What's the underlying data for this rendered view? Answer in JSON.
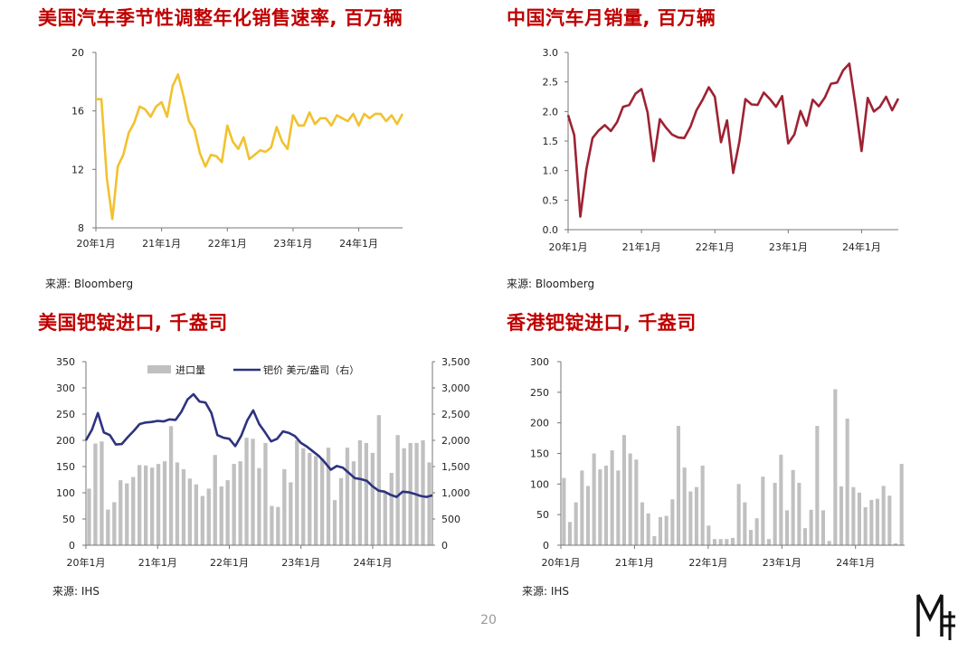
{
  "panels": {
    "us_auto": {
      "title": "美国汽车季节性调整年化销售速率, 百万辆",
      "source": "来源: Bloomberg"
    },
    "cn_auto": {
      "title": "中国汽车月销量, 百万辆",
      "source": "来源: Bloomberg"
    },
    "us_pd": {
      "title": "美国钯锭进口, 千盎司",
      "source": "来源: IHS"
    },
    "hk_pd": {
      "title": "香港钯锭进口, 千盎司",
      "source": "来源: IHS"
    }
  },
  "page_number": "20",
  "colors": {
    "title": "#c00000",
    "us_auto_line": "#f2c12e",
    "cn_auto_line": "#9e2233",
    "bar": "#c0c0c0",
    "price_line": "#2e3280"
  },
  "chart_data": [
    {
      "id": "us_auto",
      "type": "line",
      "x_ticks": [
        "20年1月",
        "21年1月",
        "22年1月",
        "23年1月",
        "24年1月"
      ],
      "ylim": [
        8,
        20
      ],
      "yticks": [
        8,
        12,
        16,
        20
      ],
      "grid": false,
      "series": [
        {
          "values": [
            16.8,
            16.8,
            11.4,
            8.6,
            12.2,
            13.0,
            14.5,
            15.2,
            16.3,
            16.1,
            15.6,
            16.3,
            16.6,
            15.6,
            17.7,
            18.5,
            17.0,
            15.3,
            14.7,
            13.1,
            12.2,
            13.0,
            12.9,
            12.5,
            15.0,
            13.9,
            13.4,
            14.2,
            12.7,
            13.0,
            13.3,
            13.2,
            13.5,
            14.9,
            13.9,
            13.4,
            15.7,
            15.0,
            15.0,
            15.9,
            15.1,
            15.5,
            15.5,
            15.0,
            15.7,
            15.5,
            15.3,
            15.8,
            15.0,
            15.8,
            15.5,
            15.8,
            15.8,
            15.3,
            15.7,
            15.1,
            15.8
          ]
        }
      ]
    },
    {
      "id": "cn_auto",
      "type": "line",
      "x_ticks": [
        "20年1月",
        "21年1月",
        "22年1月",
        "23年1月",
        "24年1月"
      ],
      "ylim": [
        0,
        3.0
      ],
      "yticks": [
        "0.0",
        "0.5",
        "1.0",
        "1.5",
        "2.0",
        "2.5",
        "3.0"
      ],
      "grid": false,
      "series": [
        {
          "values": [
            1.94,
            1.6,
            0.22,
            1.03,
            1.55,
            1.68,
            1.77,
            1.67,
            1.82,
            2.08,
            2.11,
            2.3,
            2.38,
            1.98,
            1.16,
            1.87,
            1.73,
            1.61,
            1.56,
            1.55,
            1.74,
            2.02,
            2.2,
            2.41,
            2.25,
            1.48,
            1.85,
            0.96,
            1.49,
            2.21,
            2.12,
            2.11,
            2.32,
            2.21,
            2.08,
            2.26,
            1.46,
            1.61,
            2.01,
            1.76,
            2.2,
            2.09,
            2.24,
            2.47,
            2.49,
            2.7,
            2.81,
            2.1,
            1.33,
            2.23,
            2.0,
            2.08,
            2.25,
            2.02,
            2.22
          ]
        }
      ]
    },
    {
      "id": "us_pd",
      "type": "bar",
      "x_ticks": [
        "20年1月",
        "21年1月",
        "22年1月",
        "23年1月",
        "24年1月"
      ],
      "ylim": [
        0,
        350
      ],
      "yticks": [
        0,
        50,
        100,
        150,
        200,
        250,
        300,
        350
      ],
      "ylim_right": [
        0,
        3500
      ],
      "yticks_right": [
        "0",
        "500",
        "1,000",
        "1,500",
        "2,000",
        "2,500",
        "3,000",
        "3,500"
      ],
      "grid": false,
      "legend": "top",
      "series": [
        {
          "name": "进口量",
          "type": "bar",
          "values": [
            108,
            194,
            198,
            68,
            82,
            124,
            118,
            130,
            153,
            152,
            148,
            155,
            160,
            227,
            158,
            145,
            127,
            116,
            94,
            108,
            172,
            112,
            124,
            155,
            160,
            205,
            203,
            147,
            195,
            75,
            73,
            145,
            120,
            200,
            185,
            176,
            170,
            166,
            186,
            86,
            128,
            186,
            160,
            200,
            195,
            176,
            248,
            100,
            138,
            210,
            185,
            195,
            195,
            200,
            158
          ]
        },
        {
          "name": "钯价 美元/盎司（右）",
          "type": "line",
          "axis": "right",
          "values": [
            2000,
            2200,
            2520,
            2150,
            2100,
            1920,
            1930,
            2060,
            2180,
            2310,
            2340,
            2350,
            2370,
            2360,
            2400,
            2390,
            2550,
            2780,
            2880,
            2740,
            2720,
            2520,
            2100,
            2050,
            2030,
            1890,
            2090,
            2380,
            2570,
            2310,
            2150,
            1980,
            2030,
            2170,
            2140,
            2080,
            1950,
            1880,
            1790,
            1700,
            1580,
            1440,
            1510,
            1480,
            1380,
            1280,
            1260,
            1230,
            1120,
            1040,
            1020,
            960,
            920,
            1020,
            1010,
            980,
            940,
            920,
            950
          ]
        }
      ]
    },
    {
      "id": "hk_pd",
      "type": "bar",
      "x_ticks": [
        "20年1月",
        "21年1月",
        "22年1月",
        "23年1月",
        "24年1月"
      ],
      "ylim": [
        0,
        300
      ],
      "yticks": [
        0,
        50,
        100,
        150,
        200,
        250,
        300
      ],
      "grid": false,
      "series": [
        {
          "values": [
            110,
            38,
            70,
            122,
            97,
            150,
            124,
            130,
            155,
            122,
            180,
            150,
            140,
            70,
            52,
            15,
            46,
            48,
            75,
            195,
            127,
            88,
            95,
            130,
            32,
            10,
            10,
            10,
            12,
            100,
            70,
            25,
            44,
            112,
            10,
            102,
            148,
            57,
            123,
            102,
            28,
            58,
            195,
            57,
            7,
            255,
            96,
            207,
            95,
            86,
            62,
            74,
            76,
            97,
            81,
            3,
            133
          ]
        }
      ]
    }
  ]
}
